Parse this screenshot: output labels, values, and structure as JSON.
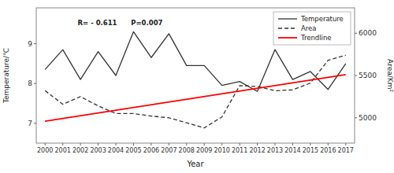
{
  "chart_data": {
    "type": "line",
    "x_label": "Year",
    "y_label": "Temperature/℃",
    "y2_label": "Area/Km²",
    "annotation": "R= - 0.611      P=0.007",
    "x": [
      2000,
      2001,
      2002,
      2003,
      2004,
      2005,
      2006,
      2007,
      2008,
      2009,
      2010,
      2011,
      2012,
      2013,
      2014,
      2015,
      2016,
      2017
    ],
    "xlim": [
      1999.5,
      2017.5
    ],
    "xticks": [
      2000,
      2001,
      2002,
      2003,
      2004,
      2005,
      2006,
      2007,
      2008,
      2009,
      2010,
      2011,
      2012,
      2013,
      2014,
      2015,
      2016,
      2017
    ],
    "ylim": [
      6.5,
      9.9
    ],
    "yticks": [
      7,
      8,
      9
    ],
    "y2lim": [
      4700,
      6300
    ],
    "y2ticks": [
      5000,
      5500,
      6000
    ],
    "series": [
      {
        "name": "Temperature",
        "color": "#333333",
        "line_style": "solid",
        "values": [
          8.35,
          8.85,
          8.1,
          8.8,
          8.2,
          9.3,
          8.65,
          9.25,
          8.45,
          8.45,
          7.95,
          8.05,
          7.8,
          8.85,
          8.1,
          8.3,
          7.85,
          8.5
        ]
      },
      {
        "name": "Area",
        "color": "#333333",
        "line_style": "dashed",
        "axis": "y2",
        "values": [
          5320,
          5160,
          5250,
          5140,
          5050,
          5050,
          5020,
          5000,
          4940,
          4880,
          5010,
          5380,
          5370,
          5320,
          5330,
          5410,
          5680,
          5740
        ]
      },
      {
        "name": "Trendline",
        "color": "#ff0000",
        "line_style": "solid",
        "axis": "y2",
        "x": [
          2000,
          2017
        ],
        "values": [
          4960,
          5510
        ]
      }
    ],
    "legend": "upper right",
    "grid": false
  }
}
